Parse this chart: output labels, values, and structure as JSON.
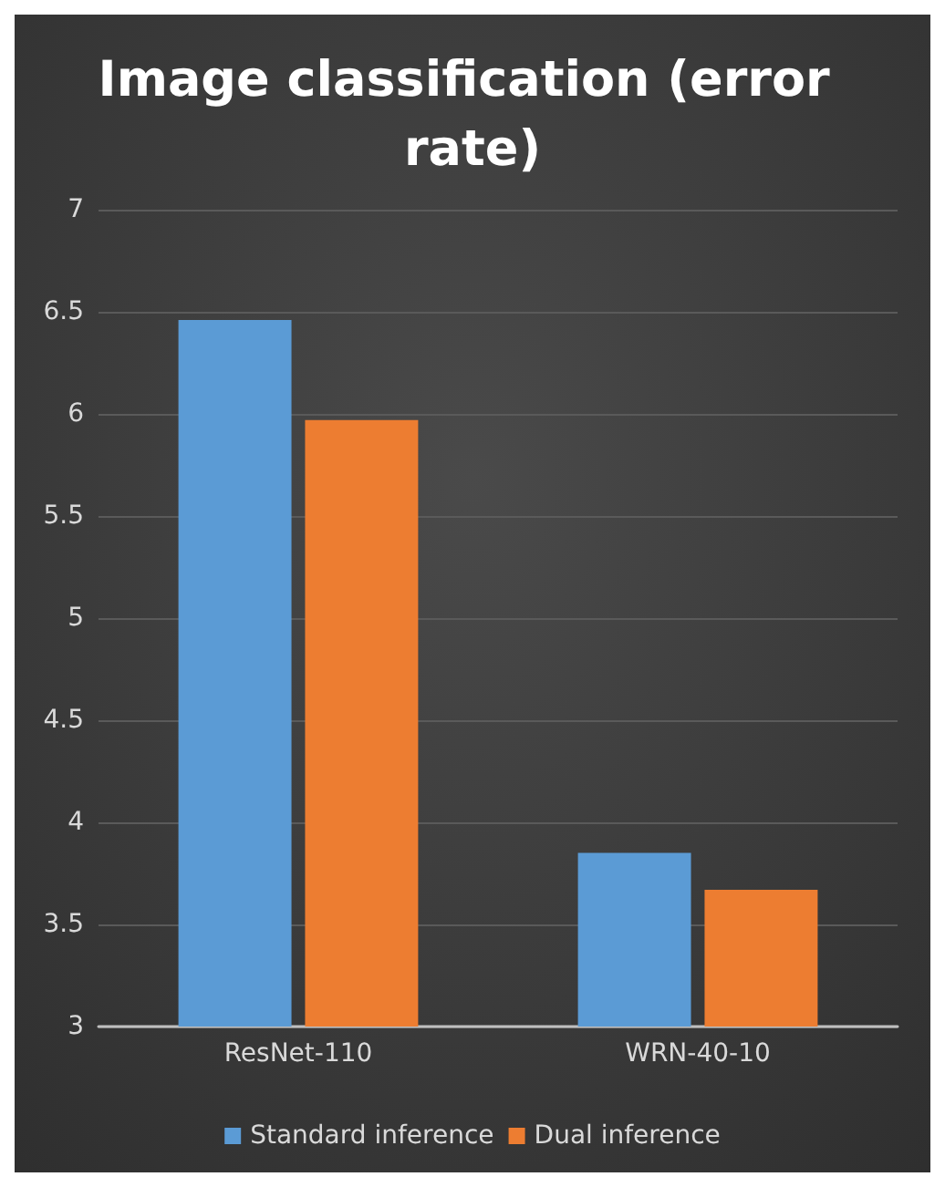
{
  "chart_data": {
    "type": "bar",
    "title": "Image classification (error rate)",
    "categories": [
      "ResNet-110",
      "WRN-40-10"
    ],
    "series": [
      {
        "name": "Standard inference",
        "color": "#5b9bd5",
        "values": [
          6.46,
          3.85
        ]
      },
      {
        "name": "Dual inference",
        "color": "#ed7d31",
        "values": [
          5.97,
          3.67
        ]
      }
    ],
    "ylim": [
      3,
      7
    ],
    "yticks": [
      3,
      3.5,
      4,
      4.5,
      5,
      5.5,
      6,
      6.5,
      7
    ],
    "grid": "y",
    "legend": "bottom"
  }
}
